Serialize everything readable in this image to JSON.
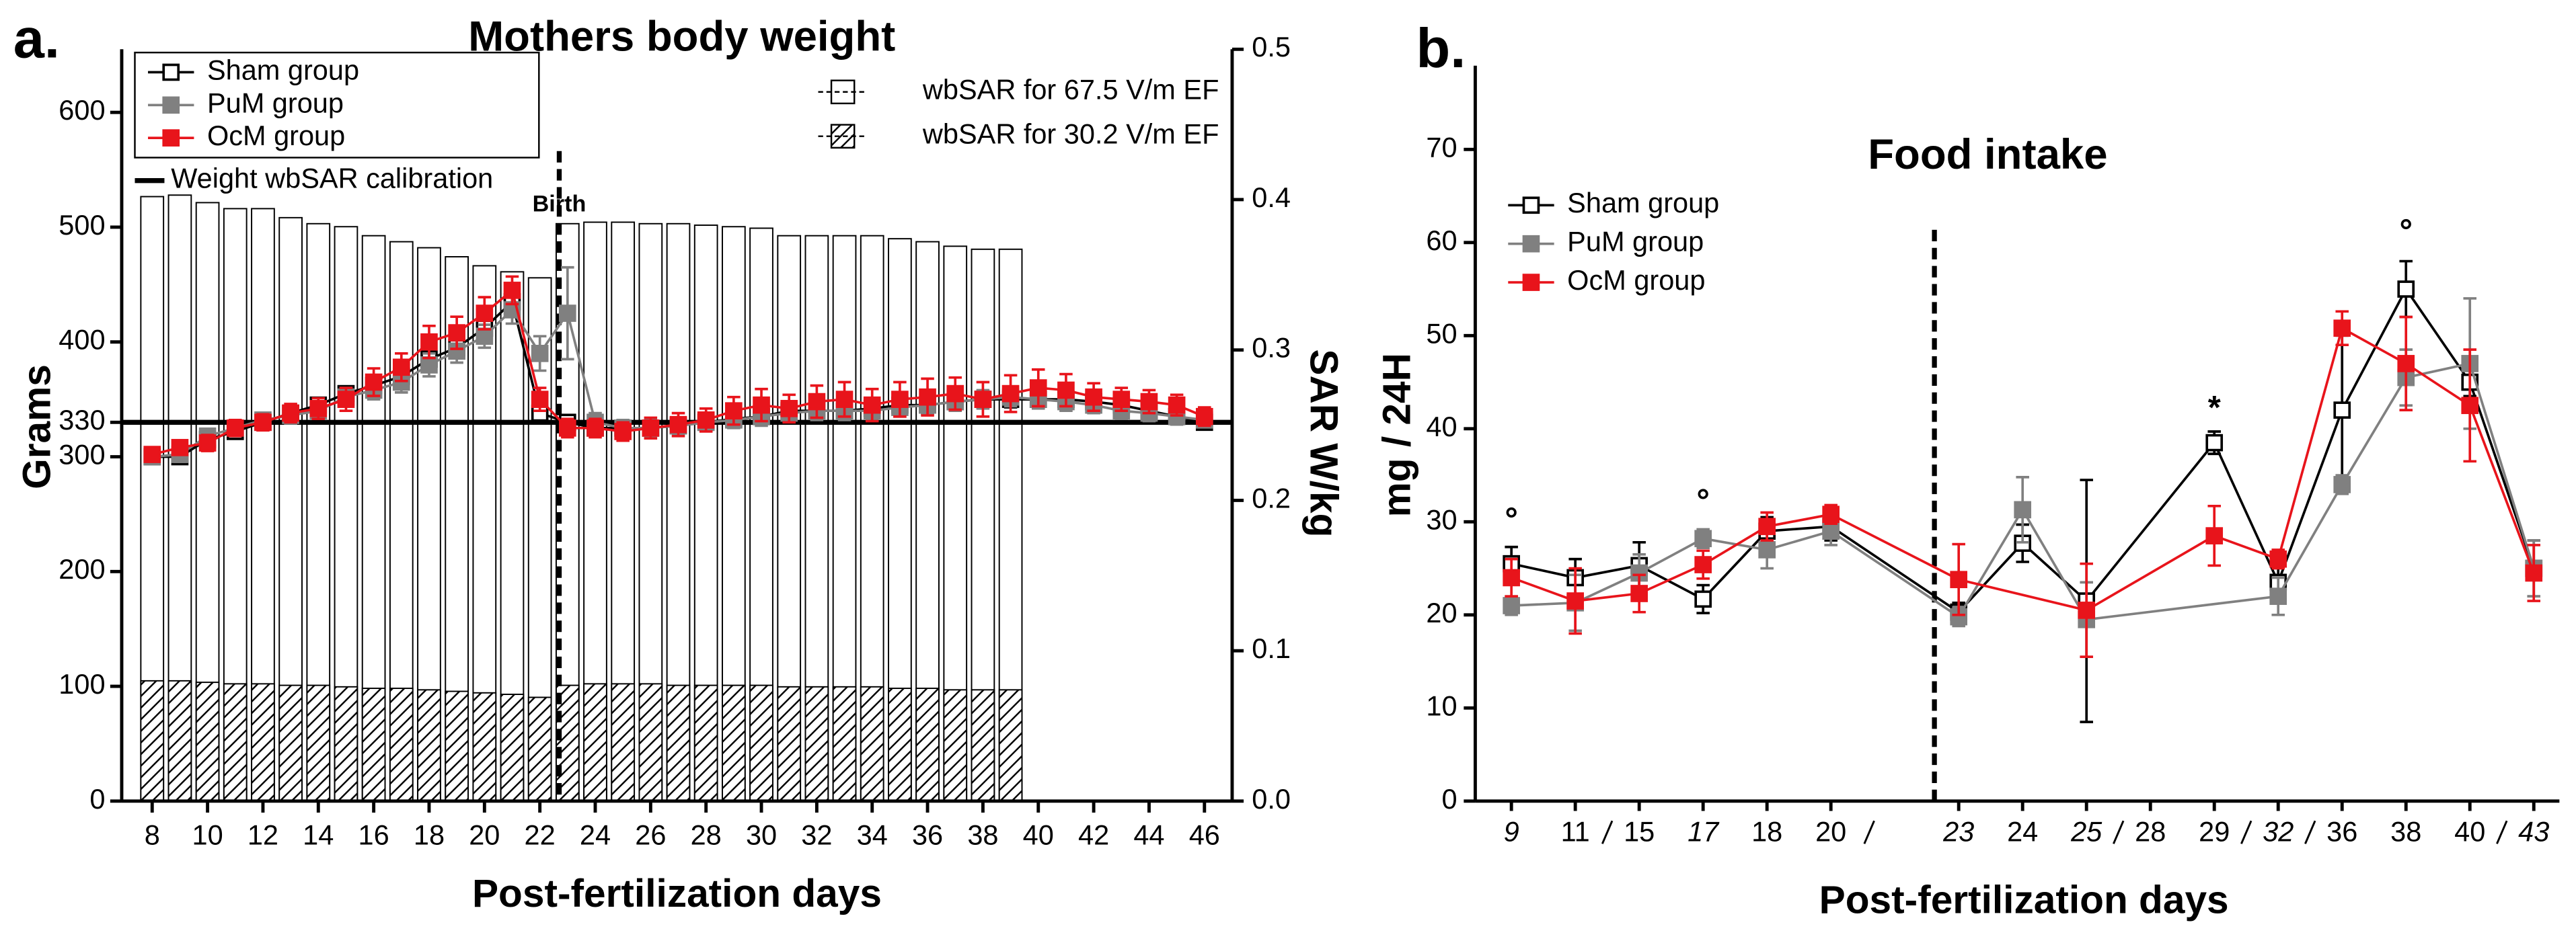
{
  "chart_data": [
    {
      "type": "line",
      "panel_label": "a.",
      "title": "Mothers body weight",
      "x_label": "Post-fertilization days",
      "y_label": "Grams",
      "y2_label": "SAR W/kg",
      "xlim": [
        6.9,
        47
      ],
      "xticks": [
        8,
        10,
        12,
        14,
        16,
        18,
        20,
        22,
        24,
        26,
        28,
        30,
        32,
        34,
        36,
        38,
        40,
        42,
        44,
        46
      ],
      "ylim": [
        0,
        655
      ],
      "yticks": [
        0,
        100,
        200,
        300,
        330,
        400,
        500,
        600
      ],
      "y2lim": [
        0,
        0.5
      ],
      "y2ticks": [
        {
          "value": 0,
          "label": "0.0"
        },
        0.1,
        0.2,
        0.3,
        0.4,
        0.5
      ],
      "x": [
        8,
        9,
        10,
        11,
        12,
        13,
        14,
        15,
        16,
        17,
        18,
        19,
        20,
        21,
        22,
        23,
        24,
        25,
        26,
        27,
        28,
        29,
        30,
        31,
        32,
        33,
        34,
        35,
        36,
        37,
        38,
        39,
        40,
        41,
        42,
        43,
        44,
        45,
        46
      ],
      "series": [
        {
          "name": "Sham group",
          "color": "#000000",
          "marker": "open-square",
          "values": [
            300,
            300,
            315,
            322,
            330,
            338,
            345,
            355,
            362,
            370,
            385,
            395,
            412,
            435,
            338,
            330,
            325,
            325,
            325,
            327,
            330,
            333,
            335,
            340,
            340,
            340,
            342,
            345,
            345,
            348,
            350,
            350,
            350,
            350,
            348,
            345,
            340,
            335,
            330
          ],
          "errors": [
            5,
            5,
            5,
            5,
            5,
            6,
            6,
            6,
            6,
            7,
            7,
            8,
            8,
            8,
            8,
            6,
            6,
            6,
            6,
            6,
            6,
            6,
            6,
            7,
            7,
            7,
            7,
            7,
            7,
            7,
            7,
            7,
            7,
            7,
            7,
            6,
            6,
            6,
            6
          ]
        },
        {
          "name": "PuM group",
          "color": "#808080",
          "marker": "square",
          "values": [
            300,
            302,
            318,
            325,
            332,
            336,
            340,
            352,
            358,
            365,
            380,
            392,
            405,
            428,
            390,
            425,
            330,
            325,
            325,
            327,
            330,
            332,
            335,
            338,
            340,
            340,
            340,
            343,
            345,
            348,
            350,
            352,
            350,
            348,
            345,
            340,
            338,
            335,
            332
          ],
          "errors": [
            6,
            6,
            6,
            6,
            6,
            7,
            7,
            8,
            8,
            9,
            10,
            10,
            10,
            12,
            15,
            40,
            8,
            7,
            7,
            7,
            7,
            7,
            8,
            8,
            8,
            8,
            8,
            8,
            8,
            8,
            8,
            8,
            8,
            8,
            7,
            7,
            7,
            7,
            6
          ]
        },
        {
          "name": "OcM group",
          "color": "#e8141b",
          "marker": "square",
          "values": [
            302,
            308,
            312,
            325,
            330,
            338,
            342,
            350,
            365,
            378,
            400,
            408,
            425,
            445,
            350,
            325,
            325,
            322,
            325,
            328,
            332,
            340,
            345,
            342,
            348,
            350,
            345,
            350,
            352,
            355,
            350,
            355,
            360,
            358,
            352,
            350,
            348,
            345,
            335
          ],
          "errors": [
            6,
            6,
            7,
            7,
            7,
            8,
            9,
            10,
            12,
            12,
            14,
            14,
            14,
            12,
            10,
            8,
            8,
            8,
            9,
            10,
            10,
            12,
            14,
            12,
            14,
            15,
            14,
            15,
            16,
            14,
            15,
            16,
            16,
            14,
            12,
            10,
            10,
            9,
            8
          ]
        },
        {
          "name": "wbSAR for 67.5 V/m EF",
          "type": "bar",
          "axis": "y2",
          "hatch": false,
          "x": [
            8,
            9,
            10,
            11,
            12,
            13,
            14,
            15,
            16,
            17,
            18,
            19,
            20,
            21,
            22,
            23,
            24,
            25,
            26,
            27,
            28,
            29,
            30,
            31,
            32,
            33,
            34,
            35,
            36,
            37,
            38,
            39
          ],
          "values": [
            0.402,
            0.403,
            0.398,
            0.394,
            0.394,
            0.388,
            0.384,
            0.382,
            0.376,
            0.372,
            0.368,
            0.362,
            0.356,
            0.352,
            0.348,
            0.384,
            0.385,
            0.385,
            0.384,
            0.384,
            0.383,
            0.382,
            0.381,
            0.376,
            0.376,
            0.376,
            0.376,
            0.374,
            0.372,
            0.369,
            0.367,
            0.367
          ]
        },
        {
          "name": "wbSAR for 30.2 V/m EF",
          "type": "bar",
          "axis": "y2",
          "hatch": true,
          "x": [
            8,
            9,
            10,
            11,
            12,
            13,
            14,
            15,
            16,
            17,
            18,
            19,
            20,
            21,
            22,
            23,
            24,
            25,
            26,
            27,
            28,
            29,
            30,
            31,
            32,
            33,
            34,
            35,
            36,
            37,
            38,
            39
          ],
          "values": [
            0.08,
            0.08,
            0.079,
            0.078,
            0.078,
            0.077,
            0.077,
            0.076,
            0.075,
            0.075,
            0.074,
            0.073,
            0.072,
            0.071,
            0.069,
            0.077,
            0.078,
            0.078,
            0.078,
            0.077,
            0.077,
            0.077,
            0.077,
            0.076,
            0.076,
            0.076,
            0.076,
            0.075,
            0.075,
            0.074,
            0.074,
            0.074
          ]
        }
      ],
      "hlines": [
        {
          "name": "Weight wbSAR calibration",
          "value": 330
        }
      ],
      "annotations": [
        {
          "text": "Birth",
          "x": 22.7
        }
      ]
    },
    {
      "type": "line",
      "panel_label": "b.",
      "title": "Food intake",
      "x_label": "Post-fertilization days",
      "y_label": "mg / 24H",
      "categories": [
        "9",
        "11",
        "15",
        "17",
        "18",
        "20",
        null,
        "23",
        "24",
        "25",
        "28",
        "29",
        "32",
        "36",
        "38",
        "40",
        "43"
      ],
      "italic": [
        true,
        false,
        false,
        true,
        false,
        false,
        false,
        true,
        false,
        true,
        false,
        false,
        true,
        false,
        false,
        false,
        true
      ],
      "ylim": [
        0,
        79
      ],
      "yticks": [
        0,
        10,
        20,
        30,
        40,
        50,
        60,
        70
      ],
      "series": [
        {
          "name": "Sham group",
          "color": "#000000",
          "marker": "open-square",
          "x": [
            9,
            11,
            15,
            17,
            18,
            20,
            23,
            24,
            25,
            29,
            32,
            36,
            38,
            40,
            43
          ],
          "values": [
            25.5,
            24,
            25.3,
            21.7,
            29,
            29.5,
            20.3,
            27.7,
            21.5,
            38.5,
            23.5,
            42,
            55,
            45,
            25
          ],
          "errors": [
            1.8,
            2,
            2.5,
            1.5,
            1.5,
            1.5,
            1,
            2,
            13,
            1.2,
            2,
            8,
            3,
            1.5,
            3
          ]
        },
        {
          "name": "PuM group",
          "color": "#808080",
          "marker": "square",
          "x": [
            9,
            11,
            15,
            17,
            18,
            20,
            23,
            24,
            25,
            32,
            36,
            38,
            40,
            43
          ],
          "values": [
            21,
            21.3,
            24.5,
            28.2,
            27,
            29,
            19.8,
            31.3,
            19.5,
            22,
            34,
            45.5,
            47,
            25
          ],
          "errors": [
            1,
            3,
            2,
            1,
            2,
            1.5,
            1,
            3.5,
            4,
            2,
            1,
            3,
            7,
            3
          ]
        },
        {
          "name": "OcM group",
          "color": "#e8141b",
          "marker": "square",
          "x": [
            9,
            11,
            15,
            17,
            18,
            20,
            23,
            25,
            29,
            32,
            36,
            38,
            40,
            43
          ],
          "values": [
            24,
            21.5,
            22.3,
            25.4,
            29.5,
            30.8,
            23.8,
            20.5,
            28.5,
            26,
            50.8,
            47,
            42.5,
            24.5
          ],
          "errors": [
            2,
            3.5,
            2,
            1.5,
            1.5,
            1,
            3.8,
            5,
            3.2,
            1,
            1.8,
            5,
            6,
            3
          ]
        }
      ],
      "annotations": [
        {
          "text": "°",
          "x": 9,
          "y": 30
        },
        {
          "text": "°",
          "x": 17,
          "y": 32
        },
        {
          "text": "*",
          "x": 29,
          "y": 42
        },
        {
          "text": "°",
          "x": 38,
          "y": 61
        }
      ]
    }
  ]
}
